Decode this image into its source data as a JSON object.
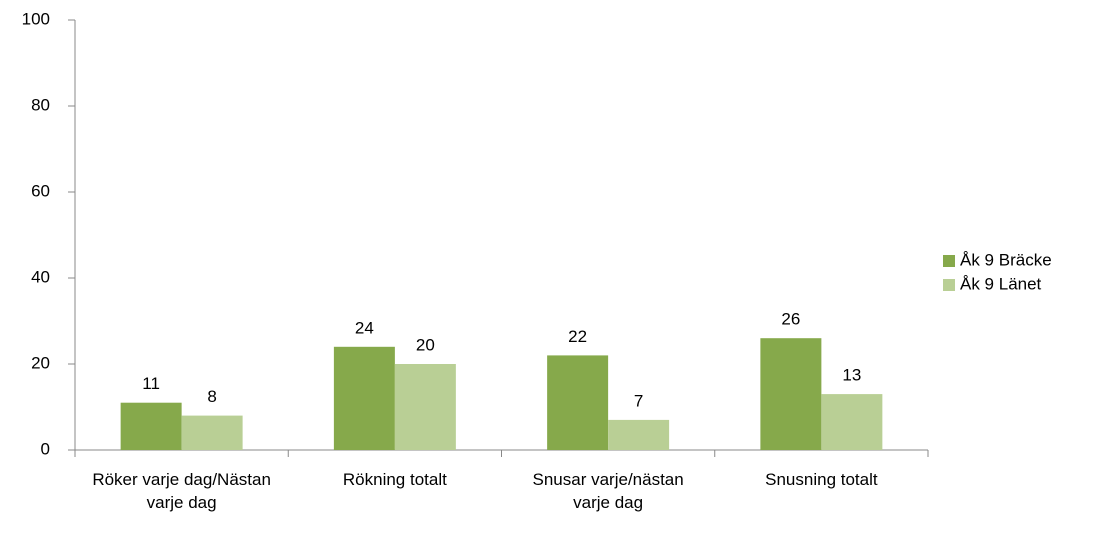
{
  "chart_data": {
    "type": "bar",
    "categories": [
      "Röker varje dag/Nästan varje dag",
      "Rökning totalt",
      "Snusar varje/nästan varje dag",
      "Snusning totalt"
    ],
    "series": [
      {
        "name": "Åk 9 Bräcke",
        "color": "#86a94b",
        "values": [
          11,
          24,
          22,
          26
        ]
      },
      {
        "name": "Åk 9 Länet",
        "color": "#b9cf95",
        "values": [
          8,
          20,
          7,
          13
        ]
      }
    ],
    "ylim": [
      0,
      100
    ],
    "yticks": [
      0,
      20,
      40,
      60,
      80,
      100
    ],
    "grid": false,
    "legend": "right"
  }
}
